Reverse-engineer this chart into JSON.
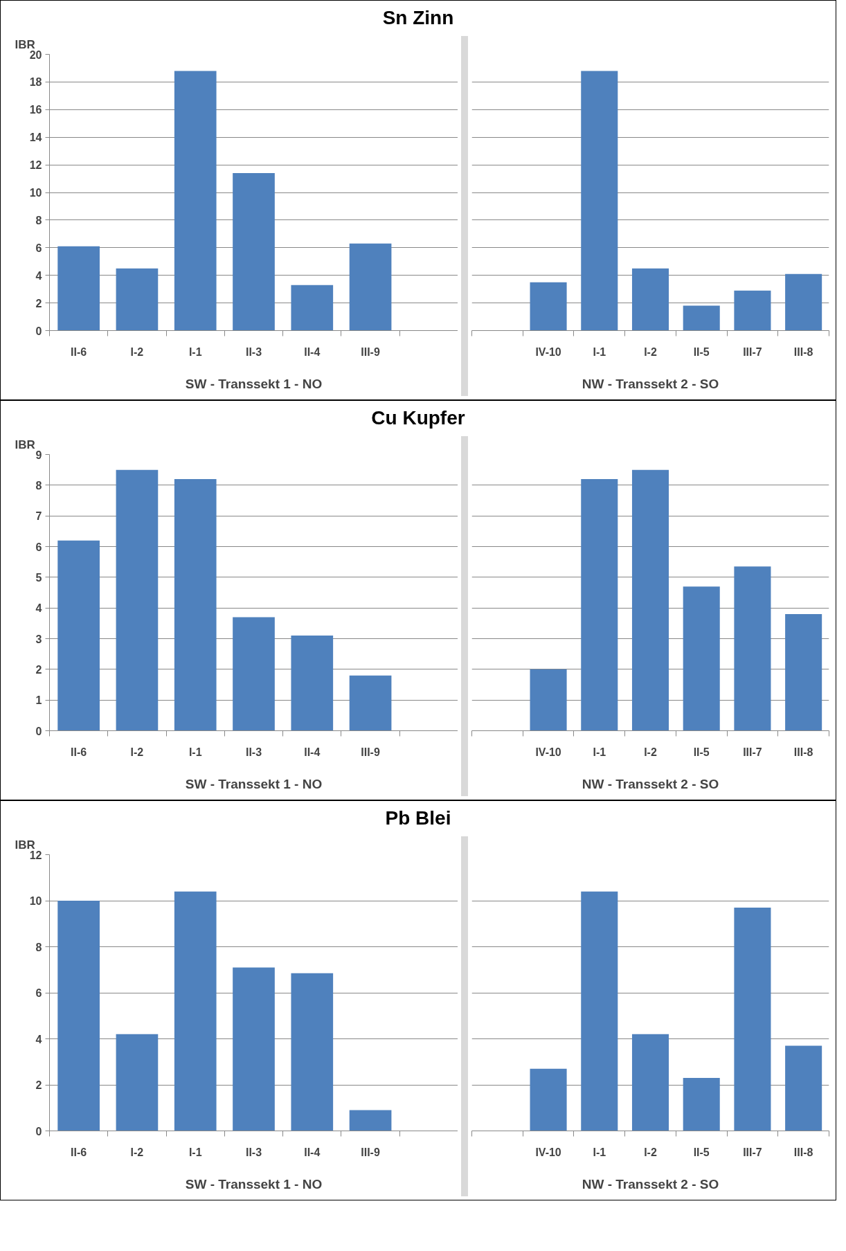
{
  "chart_data": [
    {
      "type": "bar",
      "title": "Sn Zinn",
      "ylabel": "IBR",
      "xlabel": "SW - Transsekt 1 - NO",
      "categories": [
        "II-6",
        "I-2",
        "I-1",
        "II-3",
        "II-4",
        "III-9",
        null
      ],
      "values": [
        6.1,
        4.5,
        18.8,
        11.4,
        3.3,
        6.3,
        null
      ],
      "color": "#4f81bd",
      "ylim": [
        0,
        20
      ],
      "yticks": [
        0,
        2,
        4,
        6,
        8,
        10,
        12,
        14,
        16,
        18,
        20
      ],
      "grid": "y"
    },
    {
      "type": "bar",
      "xlabel": "NW - Transsekt 2 - SO",
      "categories": [
        null,
        "IV-10",
        "I-1",
        "I-2",
        "II-5",
        "III-7",
        "III-8"
      ],
      "values": [
        null,
        3.5,
        18.8,
        4.5,
        1.8,
        2.9,
        4.1
      ],
      "color": "#4f81bd",
      "ylim": [
        0,
        20
      ],
      "yticks": [
        0,
        2,
        4,
        6,
        8,
        10,
        12,
        14,
        16,
        18,
        20
      ],
      "grid": "y",
      "tick_labels": "x"
    },
    {
      "type": "bar",
      "title": "Cu Kupfer",
      "ylabel": "IBR",
      "xlabel": "SW - Transsekt 1 - NO",
      "categories": [
        "II-6",
        "I-2",
        "I-1",
        "II-3",
        "II-4",
        "III-9",
        null
      ],
      "values": [
        6.2,
        8.5,
        8.2,
        3.7,
        3.1,
        1.8,
        null
      ],
      "color": "#4f81bd",
      "ylim": [
        0,
        9
      ],
      "yticks": [
        0,
        1,
        2,
        3,
        4,
        5,
        6,
        7,
        8,
        9
      ],
      "grid": "y"
    },
    {
      "type": "bar",
      "xlabel": "NW - Transsekt 2 - SO",
      "categories": [
        null,
        "IV-10",
        "I-1",
        "I-2",
        "II-5",
        "III-7",
        "III-8"
      ],
      "values": [
        null,
        2.0,
        8.2,
        8.5,
        4.7,
        5.35,
        3.8
      ],
      "color": "#4f81bd",
      "ylim": [
        0,
        9
      ],
      "yticks": [
        0,
        1,
        2,
        3,
        4,
        5,
        6,
        7,
        8,
        9
      ],
      "grid": "y",
      "tick_labels": "x"
    },
    {
      "type": "bar",
      "title": "Pb Blei",
      "ylabel": "IBR",
      "xlabel": "SW - Transsekt 1 - NO",
      "categories": [
        "II-6",
        "I-2",
        "I-1",
        "II-3",
        "II-4",
        "III-9",
        null
      ],
      "values": [
        10.0,
        4.2,
        10.4,
        7.1,
        6.85,
        0.9,
        null
      ],
      "color": "#4f81bd",
      "ylim": [
        0,
        12
      ],
      "yticks": [
        0,
        2,
        4,
        6,
        8,
        10,
        12
      ],
      "grid": "y"
    },
    {
      "type": "bar",
      "xlabel": "NW - Transsekt 2 - SO",
      "categories": [
        null,
        "IV-10",
        "I-1",
        "I-2",
        "II-5",
        "III-7",
        "III-8"
      ],
      "values": [
        null,
        2.7,
        10.4,
        4.2,
        2.3,
        9.7,
        3.7
      ],
      "color": "#4f81bd",
      "ylim": [
        0,
        12
      ],
      "yticks": [
        0,
        2,
        4,
        6,
        8,
        10,
        12
      ],
      "grid": "y",
      "tick_labels": "x"
    }
  ]
}
